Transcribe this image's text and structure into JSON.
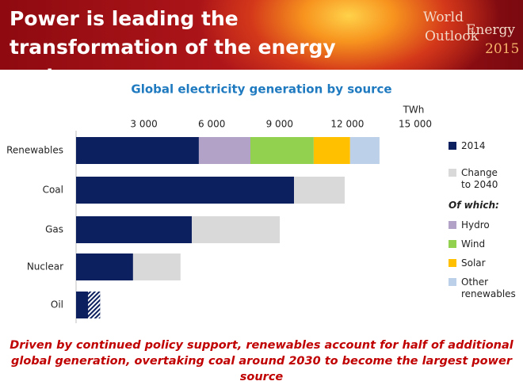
{
  "slide": {
    "title": "Power is leading the transformation of the energy system",
    "logo": [
      "World",
      "Energy",
      "Outlook",
      "2015"
    ],
    "footer": "Driven by continued policy support, renewables account for half of additional global generation, overtaking coal around 2030 to become the largest power source"
  },
  "chart_data": {
    "type": "stacked-bar-horizontal",
    "title": "Global electricity generation by source",
    "x_unit": "TWh",
    "categories": [
      "Renewables",
      "Coal",
      "Gas",
      "Nuclear",
      "Oil"
    ],
    "series": [
      {
        "name": "2014",
        "color": "#0c1f5e",
        "values": [
          5430,
          9640,
          5120,
          2520,
          1060
        ]
      },
      {
        "name": "Hydro",
        "color": "#b3a2c7",
        "values": [
          2280,
          null,
          null,
          null,
          null
        ]
      },
      {
        "name": "Wind",
        "color": "#92d050",
        "values": [
          2800,
          null,
          null,
          null,
          null
        ]
      },
      {
        "name": "Solar",
        "color": "#ffc000",
        "values": [
          1610,
          null,
          null,
          null,
          null
        ]
      },
      {
        "name": "Other renewables",
        "color": "#bdd0e9",
        "values": [
          1300,
          null,
          null,
          null,
          null
        ]
      },
      {
        "name": "Change to 2040",
        "color": "#d9d9d9",
        "values": [
          null,
          2240,
          3890,
          2100,
          -530
        ]
      }
    ],
    "legend_heading": "Of which:",
    "xlim": [
      0,
      15000
    ],
    "xticks": [
      {
        "value": 3000,
        "label": "3 000"
      },
      {
        "value": 6000,
        "label": "6 000"
      },
      {
        "value": 9000,
        "label": "9 000"
      },
      {
        "value": 12000,
        "label": "12 000"
      },
      {
        "value": 15000,
        "label": "15 000"
      }
    ],
    "grid": false
  }
}
